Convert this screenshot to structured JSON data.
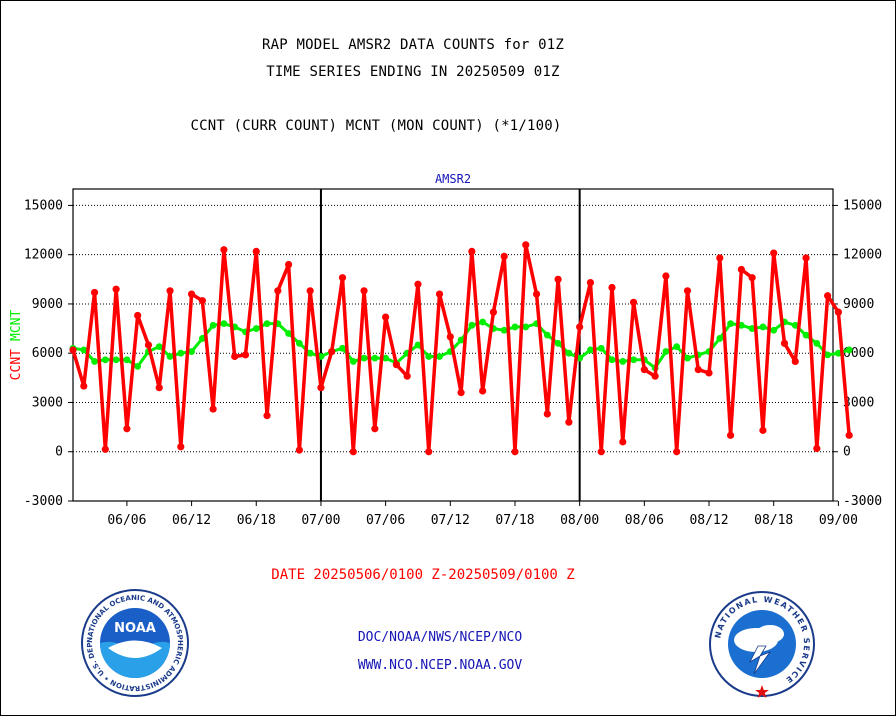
{
  "header": {
    "title_line1": "RAP MODEL AMSR2 DATA COUNTS for 01Z",
    "title_line2": "TIME SERIES ENDING IN 20250509 01Z",
    "subtitle": "CCNT (CURR COUNT) MCNT (MON COUNT) (*1/100)"
  },
  "chart_data": {
    "type": "line",
    "title": "AMSR2",
    "ylabel_parts": [
      "CCNT",
      "MCNT"
    ],
    "ylim": [
      -3000,
      16000
    ],
    "yticks": [
      -3000,
      0,
      3000,
      6000,
      9000,
      12000,
      15000
    ],
    "x_index_range": [
      0,
      70.5
    ],
    "xticks": [
      {
        "label": "06/06",
        "i": 5
      },
      {
        "label": "06/12",
        "i": 11
      },
      {
        "label": "06/18",
        "i": 17
      },
      {
        "label": "07/00",
        "i": 23
      },
      {
        "label": "07/06",
        "i": 29
      },
      {
        "label": "07/12",
        "i": 35
      },
      {
        "label": "07/18",
        "i": 41
      },
      {
        "label": "08/00",
        "i": 47
      },
      {
        "label": "08/06",
        "i": 53
      },
      {
        "label": "08/12",
        "i": 59
      },
      {
        "label": "08/18",
        "i": 65
      },
      {
        "label": "09/00",
        "i": 71
      }
    ],
    "day_boundaries_i": [
      23,
      47,
      71
    ],
    "grid": true,
    "series": [
      {
        "name": "CCNT",
        "color": "#ff0000",
        "values": [
          6200,
          4000,
          9700,
          150,
          9900,
          1400,
          8300,
          6500,
          3900,
          9800,
          300,
          9600,
          9200,
          2600,
          12300,
          5800,
          5900,
          12200,
          2200,
          9800,
          11400,
          100,
          9800,
          3900,
          6100,
          10600,
          0,
          9800,
          1400,
          8200,
          5300,
          4600,
          10200,
          0,
          9600,
          7000,
          3600,
          12200,
          3700,
          8500,
          11900,
          0,
          12600,
          9600,
          2300,
          10500,
          1800,
          7600,
          10300,
          0,
          10000,
          600,
          9100,
          5000,
          4600,
          10700,
          0,
          9800,
          5000,
          4800,
          11800,
          1000,
          11100,
          10600,
          1300,
          12100,
          6600,
          5500,
          11800,
          200,
          9500,
          8500,
          1000
        ]
      },
      {
        "name": "MCNT",
        "color": "#00ee00",
        "values": [
          6300,
          6200,
          5500,
          5600,
          5600,
          5600,
          5200,
          6100,
          6400,
          5800,
          6000,
          6100,
          6900,
          7700,
          7800,
          7600,
          7300,
          7500,
          7800,
          7800,
          7200,
          6600,
          6000,
          5800,
          6100,
          6300,
          5500,
          5700,
          5700,
          5700,
          5400,
          6000,
          6500,
          5800,
          5800,
          6100,
          6800,
          7700,
          7900,
          7500,
          7400,
          7600,
          7600,
          7800,
          7100,
          6600,
          6000,
          5700,
          6200,
          6300,
          5600,
          5500,
          5600,
          5600,
          5100,
          6100,
          6400,
          5700,
          5900,
          6100,
          6900,
          7800,
          7700,
          7500,
          7600,
          7400,
          7900,
          7700,
          7100,
          6600,
          5900,
          6000,
          6200
        ]
      }
    ],
    "date_range": "DATE 20250506/0100 Z-20250509/0100 Z"
  },
  "colors": {
    "ccnt": "#ff0000",
    "mcnt": "#00ee00",
    "axis": "#000000",
    "panel_title": "#1515b4"
  },
  "footer": {
    "line1": "DOC/NOAA/NWS/NCEP/NCO",
    "line2": "WWW.NCO.NCEP.NOAA.GOV"
  },
  "logos": {
    "noaa_center": "NOAA",
    "noaa_ring": "NATIONAL OCEANIC AND ATMOSPHERIC ADMINISTRATION • U.S. DEPARTMENT OF COMMERCE •",
    "nws_ring": "NATIONAL WEATHER SERVICE"
  }
}
